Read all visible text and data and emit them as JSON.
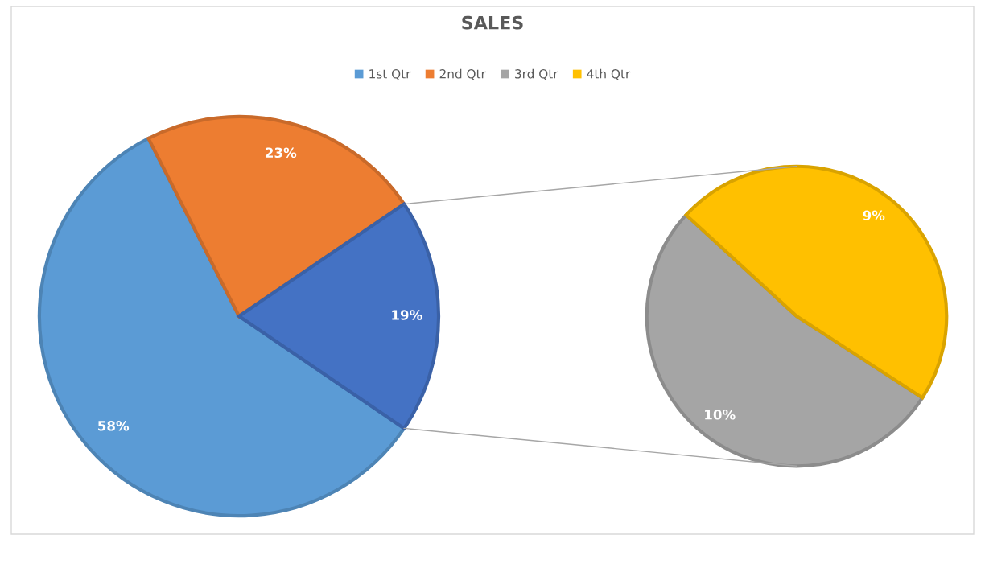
{
  "chart_data": [
    {
      "type": "pie",
      "title": "SALES",
      "legend": "top",
      "categories": [
        "1st Qtr",
        "2nd Qtr",
        null
      ],
      "values": [
        58,
        23,
        19
      ],
      "colors": [
        "#5b9bd5",
        "#ed7d31",
        "#4472c4"
      ],
      "value_labels": [
        "58%",
        "23%",
        "19%"
      ]
    },
    {
      "type": "pie",
      "legend": "top",
      "categories": [
        "3rd Qtr",
        "4th Qtr"
      ],
      "values": [
        10,
        9
      ],
      "colors": [
        "#a5a5a5",
        "#ffc000"
      ],
      "value_labels": [
        "10%",
        "9%"
      ]
    }
  ]
}
